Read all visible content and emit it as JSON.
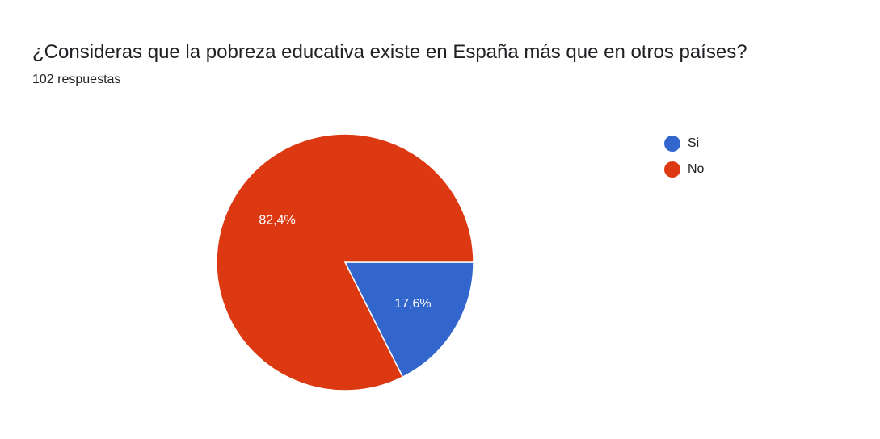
{
  "header": {
    "title": "¿Consideras que la pobreza educativa existe en España más que en otros países?",
    "responses": "102 respuestas"
  },
  "chart_data": {
    "type": "pie",
    "title": "¿Consideras que la pobreza educativa existe en España más que en otros países?",
    "subtitle": "102 respuestas",
    "legend_position": "right",
    "slices": [
      {
        "label": "Si",
        "value": 17.6,
        "display": "17,6%",
        "color": "#3366cc"
      },
      {
        "label": "No",
        "value": 82.4,
        "display": "82,4%",
        "color": "#dc3912"
      }
    ]
  }
}
